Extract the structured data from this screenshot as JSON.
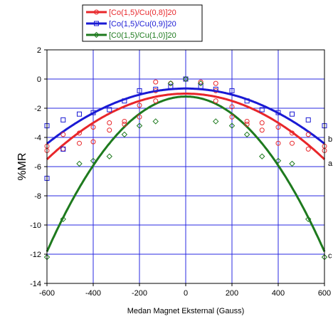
{
  "chart_data": {
    "type": "scatter",
    "title": "",
    "xlabel": "Medan Magnet Eksternal (Gauss)",
    "ylabel": "%MR",
    "xlim": [
      -600,
      600
    ],
    "ylim": [
      -14,
      2
    ],
    "xticks": [
      -600,
      -400,
      -200,
      0,
      200,
      400,
      600
    ],
    "yticks": [
      -14,
      -12,
      -10,
      -8,
      -6,
      -4,
      -2,
      0,
      2
    ],
    "grid": true,
    "legend_position": "top-left",
    "series": [
      {
        "name": "[Co(1,5)/Cu(0,8)]20",
        "color": "#e8262a",
        "marker": "circle",
        "curve_label": "a",
        "fit": {
          "a": -1.0,
          "c": -1.25e-05
        },
        "points": [
          [
            -600,
            -4.6
          ],
          [
            -600,
            -4.9
          ],
          [
            -530,
            -3.8
          ],
          [
            -530,
            -4.8
          ],
          [
            -460,
            -3.7
          ],
          [
            -460,
            -4.4
          ],
          [
            -400,
            -3.3
          ],
          [
            -400,
            -4.3
          ],
          [
            -330,
            -3.0
          ],
          [
            -330,
            -3.5
          ],
          [
            -265,
            -2.9
          ],
          [
            -265,
            -3.1
          ],
          [
            -200,
            -2.6
          ],
          [
            -200,
            -1.8
          ],
          [
            -130,
            -1.5
          ],
          [
            -130,
            -0.8
          ],
          [
            -130,
            -0.2
          ],
          [
            -65,
            -0.3
          ],
          [
            0,
            0.0
          ],
          [
            65,
            -0.2
          ],
          [
            130,
            -0.3
          ],
          [
            130,
            -0.8
          ],
          [
            130,
            -1.5
          ],
          [
            200,
            -1.9
          ],
          [
            200,
            -2.6
          ],
          [
            265,
            -2.9
          ],
          [
            265,
            -3.1
          ],
          [
            330,
            -3.0
          ],
          [
            330,
            -3.5
          ],
          [
            400,
            -3.3
          ],
          [
            400,
            -4.4
          ],
          [
            460,
            -3.7
          ],
          [
            460,
            -4.4
          ],
          [
            530,
            -3.8
          ],
          [
            530,
            -4.8
          ],
          [
            600,
            -4.6
          ],
          [
            600,
            -4.9
          ]
        ]
      },
      {
        "name": "[Co(1,5)/Cu(0,9)]20",
        "color": "#1a1ad4",
        "marker": "square",
        "curve_label": "b",
        "fit": {
          "a": -0.65,
          "c": -1.05e-05
        },
        "points": [
          [
            -600,
            -3.2
          ],
          [
            -600,
            -6.8
          ],
          [
            -530,
            -2.8
          ],
          [
            -530,
            -4.8
          ],
          [
            -460,
            -2.4
          ],
          [
            -400,
            -2.3
          ],
          [
            -330,
            -2.1
          ],
          [
            -265,
            -1.5
          ],
          [
            -200,
            -0.8
          ],
          [
            -130,
            -0.7
          ],
          [
            -65,
            -0.5
          ],
          [
            0,
            0.0
          ],
          [
            65,
            -0.5
          ],
          [
            130,
            -0.7
          ],
          [
            200,
            -0.8
          ],
          [
            265,
            -1.5
          ],
          [
            330,
            -2.1
          ],
          [
            400,
            -2.3
          ],
          [
            460,
            -2.4
          ],
          [
            530,
            -2.8
          ],
          [
            600,
            -3.2
          ]
        ]
      },
      {
        "name": "[C0(1,5)/Cu(1,0)]20",
        "color": "#1e7a1e",
        "marker": "diamond",
        "curve_label": "c",
        "fit": {
          "a": -1.2,
          "c": -2.95e-05
        },
        "points": [
          [
            -600,
            -12.2
          ],
          [
            -530,
            -9.6
          ],
          [
            -460,
            -5.8
          ],
          [
            -400,
            -5.6
          ],
          [
            -330,
            -5.3
          ],
          [
            -265,
            -3.8
          ],
          [
            -200,
            -3.2
          ],
          [
            -130,
            -2.9
          ],
          [
            -65,
            -0.3
          ],
          [
            0,
            0.0
          ],
          [
            65,
            -0.3
          ],
          [
            130,
            -2.9
          ],
          [
            200,
            -3.2
          ],
          [
            265,
            -3.8
          ],
          [
            330,
            -5.3
          ],
          [
            400,
            -5.6
          ],
          [
            460,
            -5.8
          ],
          [
            530,
            -9.6
          ],
          [
            600,
            -12.2
          ]
        ]
      }
    ]
  }
}
